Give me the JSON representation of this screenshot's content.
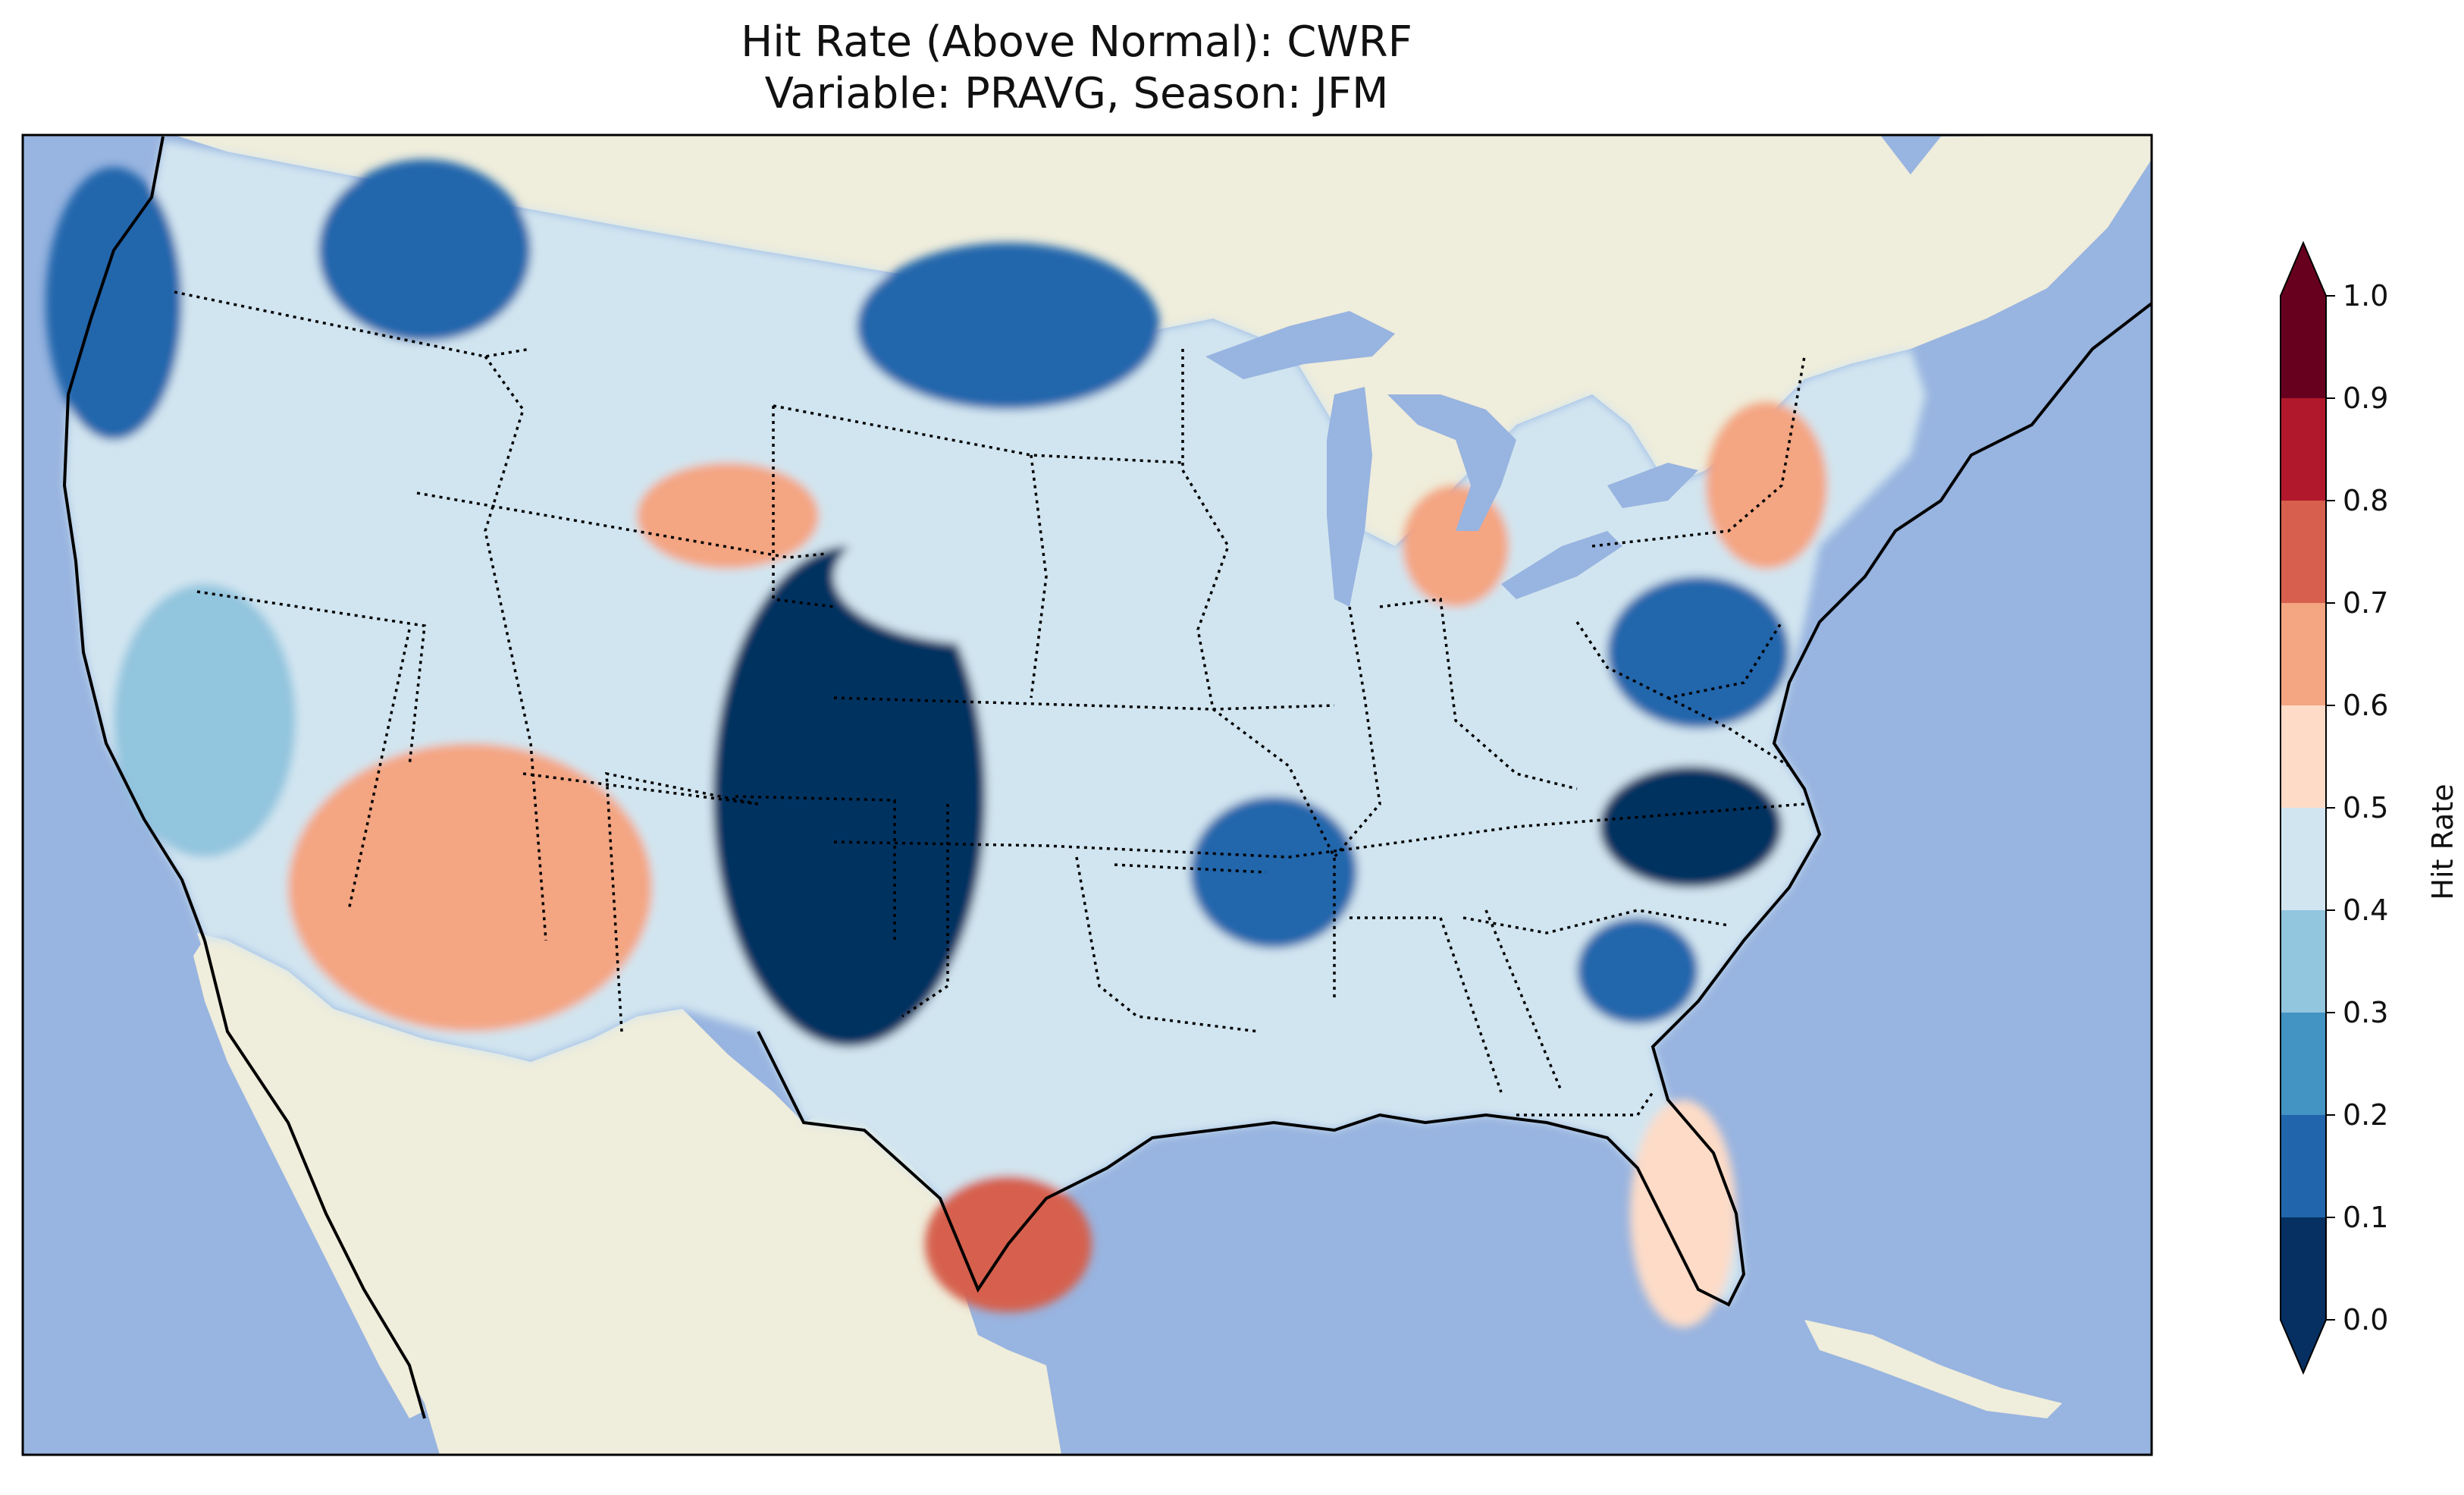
{
  "title": {
    "line1": "Hit Rate (Above Normal): CWRF",
    "line2": "Variable: PRAVG, Season: JFM"
  },
  "colors": {
    "ocean": "#98b4e0",
    "land": "#efeddb",
    "coast": "#000000",
    "borders": "#000000"
  },
  "colorbar": {
    "label": "Hit Rate",
    "ticks": [
      "0.0",
      "0.1",
      "0.2",
      "0.3",
      "0.4",
      "0.5",
      "0.6",
      "0.7",
      "0.8",
      "0.9",
      "1.0"
    ],
    "colors": [
      "#053061",
      "#2166ac",
      "#4393c3",
      "#92c5de",
      "#d1e5f0",
      "#fddbc7",
      "#f4a582",
      "#d6604d",
      "#b2182b",
      "#67001f"
    ],
    "extend": "both"
  },
  "chart_data": {
    "type": "heatmap",
    "variable": "PRAVG",
    "season": "JFM",
    "model": "CWRF",
    "range": [
      0.0,
      1.0
    ],
    "regions": [
      {
        "name": "Pacific Northwest coast",
        "value": 0.12
      },
      {
        "name": "Northern Idaho / NW Montana",
        "value": 0.15
      },
      {
        "name": "North Dakota / NW Minnesota",
        "value": 0.18
      },
      {
        "name": "SE Wyoming / Colorado / W Kansas / Oklahoma panhandle",
        "value": 0.05
      },
      {
        "name": "N Arkansas / W Tennessee",
        "value": 0.12
      },
      {
        "name": "Eastern North Carolina",
        "value": 0.08
      },
      {
        "name": "Virginia / Maryland",
        "value": 0.1
      },
      {
        "name": "South Carolina coast",
        "value": 0.15
      },
      {
        "name": "Southern Arizona / SW New Mexico",
        "value": 0.62
      },
      {
        "name": "S Montana / N Wyoming",
        "value": 0.68
      },
      {
        "name": "Southeast Texas coast",
        "value": 0.72
      },
      {
        "name": "Michigan",
        "value": 0.62
      },
      {
        "name": "Pennsylvania / New York",
        "value": 0.6
      },
      {
        "name": "Florida peninsula",
        "value": 0.52
      },
      {
        "name": "Great Plains (S Dakota / Nebraska)",
        "value": 0.45
      },
      {
        "name": "Central California",
        "value": 0.3
      }
    ]
  }
}
